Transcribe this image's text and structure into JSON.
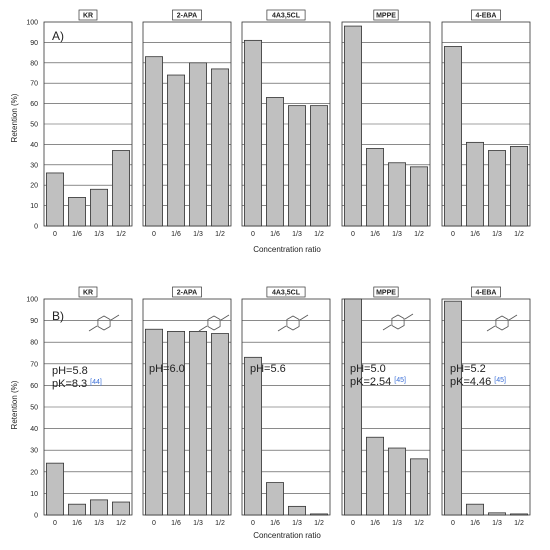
{
  "figure": {
    "ylabel": "Retention (%)",
    "xlabel": "Concentration ratio"
  },
  "chart_data": [
    {
      "type": "bar",
      "row": "A",
      "ylim": [
        0,
        100
      ],
      "yticks": [
        0,
        10,
        20,
        30,
        40,
        50,
        60,
        70,
        80,
        90,
        100
      ],
      "categories": [
        "0",
        "1/6",
        "1/3",
        "1/2"
      ],
      "panels": [
        {
          "title": "KR",
          "values": [
            26,
            14,
            18,
            37
          ]
        },
        {
          "title": "2-APA",
          "values": [
            83,
            74,
            80,
            77
          ]
        },
        {
          "title": "4A3,5CL",
          "values": [
            91,
            63,
            59,
            59
          ]
        },
        {
          "title": "MPPE",
          "values": [
            98,
            38,
            31,
            29
          ]
        },
        {
          "title": "4-EBA",
          "values": [
            88,
            41,
            37,
            39
          ]
        }
      ],
      "panel_letter": "A)"
    },
    {
      "type": "bar",
      "row": "B",
      "ylim": [
        0,
        100
      ],
      "yticks": [
        0,
        10,
        20,
        30,
        40,
        50,
        60,
        70,
        80,
        90,
        100
      ],
      "categories": [
        "0",
        "1/6",
        "1/3",
        "1/2"
      ],
      "panels": [
        {
          "title": "KR",
          "values": [
            24,
            5,
            7,
            6
          ],
          "annotations": [
            "pH=5.8",
            "pK=8.3"
          ],
          "citation": "[44]"
        },
        {
          "title": "2-APA",
          "values": [
            86,
            85,
            85,
            84
          ],
          "annotations": [
            "pH=6.0"
          ],
          "citation": ""
        },
        {
          "title": "4A3,5CL",
          "values": [
            73,
            15,
            4,
            0.5
          ],
          "annotations": [
            "pH=5.6"
          ],
          "citation": ""
        },
        {
          "title": "MPPE",
          "values": [
            100,
            36,
            31,
            26
          ],
          "annotations": [
            "pH=5.0",
            "pK=2.54"
          ],
          "citation": "[45]"
        },
        {
          "title": "4-EBA",
          "values": [
            99,
            5,
            1,
            0.5
          ],
          "annotations": [
            "pH=5.2",
            "pK=4.46"
          ],
          "citation": "[45]"
        }
      ],
      "panel_letter": "B)"
    }
  ]
}
